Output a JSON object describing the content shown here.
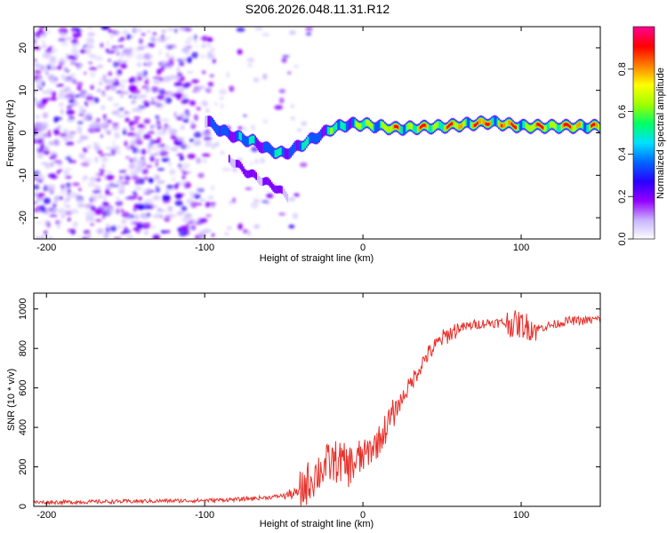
{
  "title": "S206.2026.048.11.31.R12",
  "chart_data": [
    {
      "type": "heatmap",
      "name": "spectrogram",
      "xlabel": "Height of straight line (km)",
      "ylabel": "Frequency (Hz)",
      "xlim": [
        -208,
        150
      ],
      "ylim": [
        -25,
        25
      ],
      "xticks": [
        -200,
        -100,
        0,
        100
      ],
      "yticks": [
        -20,
        -10,
        0,
        10,
        20
      ],
      "colorbar": {
        "label": "Normalized spectral amplitude",
        "range": [
          0,
          1
        ],
        "ticks": [
          "0.0",
          "0.2",
          "0.4",
          "0.6",
          "0.8"
        ],
        "colors": [
          "#ffffff",
          "#c8b4ff",
          "#9400ff",
          "#2a00ff",
          "#0066ff",
          "#00e0ff",
          "#00ff66",
          "#a0ff00",
          "#ffff00",
          "#ff8000",
          "#ff0000",
          "#ff0090"
        ]
      },
      "description_points": {
        "main_trace": [
          {
            "x": -100,
            "f": 3,
            "amp": 0.3
          },
          {
            "x": -90,
            "f": 0.5,
            "amp": 0.4
          },
          {
            "x": -80,
            "f": -1,
            "amp": 0.45
          },
          {
            "x": -70,
            "f": -2,
            "amp": 0.5
          },
          {
            "x": -60,
            "f": -4,
            "amp": 0.45
          },
          {
            "x": -50,
            "f": -5,
            "amp": 0.5
          },
          {
            "x": -40,
            "f": -3,
            "amp": 0.45
          },
          {
            "x": -30,
            "f": -1,
            "amp": 0.5
          },
          {
            "x": -20,
            "f": 1,
            "amp": 0.55
          },
          {
            "x": -10,
            "f": 2,
            "amp": 0.6
          },
          {
            "x": 0,
            "f": 2,
            "amp": 0.65
          },
          {
            "x": 20,
            "f": 1,
            "amp": 0.8
          },
          {
            "x": 50,
            "f": 1.5,
            "amp": 0.85
          },
          {
            "x": 80,
            "f": 2.5,
            "amp": 0.9
          },
          {
            "x": 100,
            "f": 1.5,
            "amp": 0.85
          },
          {
            "x": 130,
            "f": 1.5,
            "amp": 0.9
          },
          {
            "x": 150,
            "f": 1.5,
            "amp": 0.8
          }
        ],
        "lower_branch": [
          {
            "x": -85,
            "f": -6,
            "amp": 0.3
          },
          {
            "x": -75,
            "f": -9,
            "amp": 0.3
          },
          {
            "x": -65,
            "f": -11,
            "amp": 0.28
          },
          {
            "x": -55,
            "f": -13,
            "amp": 0.25
          },
          {
            "x": -48,
            "f": -15,
            "amp": 0.2
          }
        ]
      }
    },
    {
      "type": "line",
      "name": "snr",
      "xlabel": "Height of straight line (km)",
      "ylabel": "SNR (10 * v/v)",
      "xlim": [
        -208,
        150
      ],
      "ylim": [
        0,
        1080
      ],
      "xticks": [
        -200,
        -100,
        0,
        100
      ],
      "yticks": [
        0,
        200,
        400,
        600,
        800,
        1000
      ],
      "color": "#e8302a",
      "series": [
        {
          "name": "SNR",
          "x": [
            -208,
            -180,
            -150,
            -120,
            -100,
            -80,
            -70,
            -60,
            -50,
            -40,
            -35,
            -30,
            -25,
            -20,
            -15,
            -10,
            -5,
            0,
            10,
            20,
            30,
            40,
            50,
            60,
            70,
            80,
            90,
            100,
            110,
            120,
            130,
            140,
            150
          ],
          "y": [
            20,
            22,
            25,
            28,
            30,
            35,
            40,
            45,
            55,
            70,
            120,
            160,
            200,
            220,
            230,
            200,
            220,
            250,
            330,
            480,
            620,
            760,
            850,
            900,
            920,
            930,
            930,
            920,
            900,
            920,
            940,
            940,
            950
          ]
        }
      ]
    }
  ]
}
